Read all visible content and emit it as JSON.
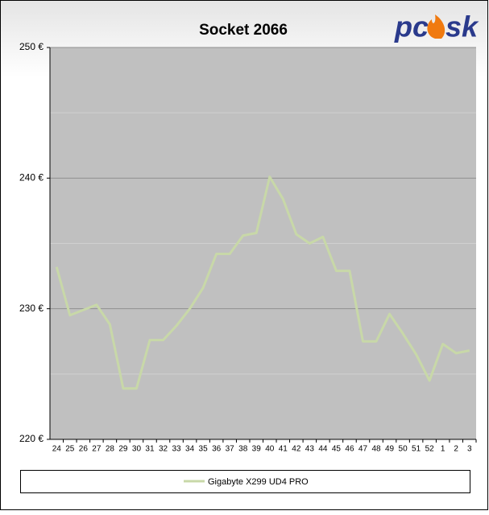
{
  "chart_data": {
    "type": "line",
    "title": "Socket 2066",
    "logo": {
      "left": "pc",
      "right": "sk"
    },
    "categories": [
      "24",
      "25",
      "26",
      "27",
      "28",
      "29",
      "30",
      "31",
      "32",
      "33",
      "34",
      "35",
      "36",
      "37",
      "38",
      "39",
      "40",
      "41",
      "42",
      "43",
      "44",
      "45",
      "46",
      "47",
      "48",
      "49",
      "50",
      "51",
      "52",
      "1",
      "2",
      "3"
    ],
    "series": [
      {
        "name": "Gigabyte X299 UD4 PRO",
        "color": "#c8d8a8",
        "values": [
          233.2,
          229.5,
          229.9,
          230.3,
          228.8,
          223.9,
          223.9,
          227.6,
          227.6,
          228.7,
          230.0,
          231.6,
          234.2,
          234.2,
          235.6,
          235.8,
          240.1,
          238.4,
          235.7,
          235.0,
          235.5,
          232.9,
          232.9,
          227.5,
          227.5,
          229.6,
          228.1,
          226.5,
          224.5,
          227.3,
          226.6,
          226.8
        ]
      }
    ],
    "ylim": [
      220,
      250
    ],
    "yticks": [
      {
        "value": 220,
        "label": "220 €"
      },
      {
        "value": 230,
        "label": "230 €"
      },
      {
        "value": 240,
        "label": "240 €"
      },
      {
        "value": 250,
        "label": "250 €"
      }
    ],
    "minor_yticks": [
      225,
      235,
      245
    ],
    "grid": true,
    "plot_background": "#c0c0c0",
    "legend": "bottom"
  }
}
